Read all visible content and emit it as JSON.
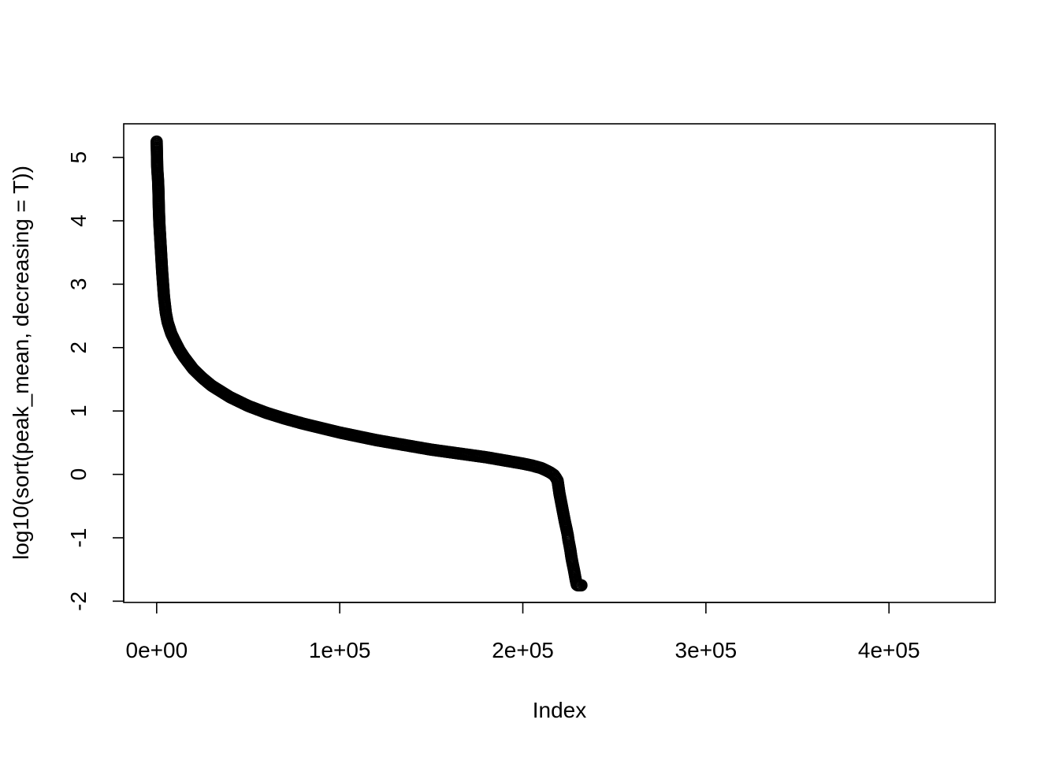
{
  "chart_data": {
    "type": "scatter",
    "title": "",
    "xlabel": "Index",
    "ylabel": "log10(sort(peak_mean, decreasing = T))",
    "xlim": [
      -18000,
      458000
    ],
    "ylim": [
      -2.02,
      5.53
    ],
    "x_ticks": [
      {
        "value": 0,
        "label": "0e+00"
      },
      {
        "value": 100000,
        "label": "1e+05"
      },
      {
        "value": 200000,
        "label": "2e+05"
      },
      {
        "value": 300000,
        "label": "3e+05"
      },
      {
        "value": 400000,
        "label": "4e+05"
      }
    ],
    "y_ticks": [
      {
        "value": -2,
        "label": "-2"
      },
      {
        "value": -1,
        "label": "-1"
      },
      {
        "value": 0,
        "label": "0"
      },
      {
        "value": 1,
        "label": "1"
      },
      {
        "value": 2,
        "label": "2"
      },
      {
        "value": 3,
        "label": "3"
      },
      {
        "value": 4,
        "label": "4"
      },
      {
        "value": 5,
        "label": "5"
      }
    ],
    "grid": false,
    "legend": "none",
    "marker": "open-circle",
    "color": "#000000",
    "series": [
      {
        "x": [
          0,
          300,
          500,
          800,
          1000,
          1200,
          1500,
          2000,
          2500,
          3000,
          3500,
          4000,
          5000,
          6000,
          8000,
          10000,
          12500,
          15000,
          20000,
          25000,
          30000,
          40000,
          50000,
          60000,
          70000,
          80000,
          90000,
          100000,
          110000,
          120000,
          130000,
          140000,
          150000,
          160000,
          170000,
          180000,
          190000,
          200000,
          205000,
          210000,
          213000,
          215000,
          217000,
          218000,
          219000,
          219500,
          220000,
          221000,
          222000,
          223000,
          224000,
          224500,
          225000,
          225500,
          226000,
          226500,
          227000,
          227500,
          228000,
          228500,
          229000,
          229500,
          230000,
          230500,
          231000,
          231500,
          232000
        ],
        "y": [
          5.25,
          4.85,
          4.75,
          4.62,
          4.45,
          4.2,
          3.95,
          3.7,
          3.45,
          3.2,
          3.0,
          2.8,
          2.55,
          2.4,
          2.22,
          2.1,
          1.96,
          1.85,
          1.66,
          1.52,
          1.4,
          1.22,
          1.08,
          0.97,
          0.88,
          0.8,
          0.73,
          0.66,
          0.6,
          0.54,
          0.49,
          0.44,
          0.39,
          0.35,
          0.31,
          0.27,
          0.22,
          0.17,
          0.14,
          0.1,
          0.06,
          0.03,
          -0.01,
          -0.05,
          -0.1,
          -0.2,
          -0.3,
          -0.45,
          -0.6,
          -0.75,
          -0.88,
          -0.95,
          -1.05,
          -1.12,
          -1.2,
          -1.3,
          -1.38,
          -1.45,
          -1.52,
          -1.6,
          -1.68,
          -1.74,
          -1.75,
          -1.75,
          -1.75,
          -1.75,
          -1.75
        ]
      }
    ]
  }
}
